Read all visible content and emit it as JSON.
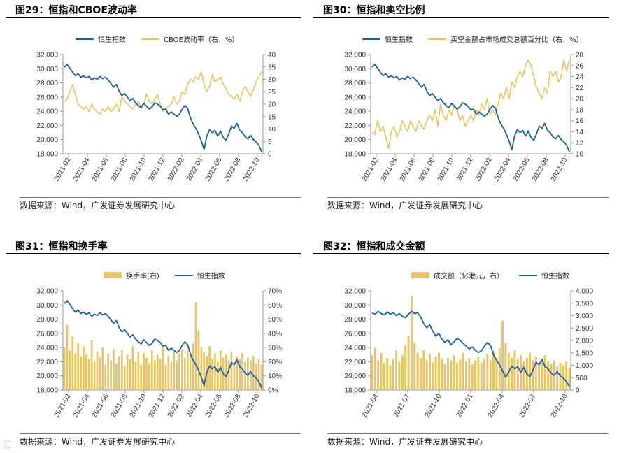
{
  "source_label": "数据来源：Wind，广发证券发展研究中心",
  "watermark": "汇",
  "colors": {
    "hsi": "#1f5f9e",
    "secondary": "#e6c566",
    "bar": "#e6c566"
  },
  "chart_data": [
    {
      "id": "fig29",
      "type": "line",
      "title": "图29：恒指和CBOE波动率",
      "y_left": {
        "min": 18000,
        "max": 32000,
        "ticks": [
          "32,000",
          "30,000",
          "28,000",
          "26,000",
          "24,000",
          "22,000",
          "20,000",
          "18,000"
        ]
      },
      "y_right": {
        "min": 0,
        "max": 40,
        "ticks": [
          "40",
          "35",
          "30",
          "25",
          "20",
          "15",
          "10",
          "5",
          "0"
        ]
      },
      "x_ticks": [
        "2021-02",
        "2021-04",
        "2021-06",
        "2021-08",
        "2021-10",
        "2021-12",
        "2022-02",
        "2022-04",
        "2022-06",
        "2022-08",
        "2022-10"
      ],
      "legend_order": [
        "hsi",
        "sec"
      ],
      "series": [
        {
          "key": "hsi",
          "name": "恒生指数",
          "axis": "left",
          "style": "line",
          "values": [
            30200,
            30600,
            30100,
            29500,
            29000,
            29300,
            28800,
            29000,
            28700,
            28900,
            28400,
            28700,
            28500,
            28900,
            28600,
            28800,
            28400,
            27900,
            27400,
            27800,
            26800,
            26200,
            26500,
            26000,
            25500,
            25800,
            25200,
            24800,
            24500,
            25100,
            24700,
            24300,
            24600,
            25200,
            25000,
            24700,
            24200,
            24300,
            23600,
            23900,
            23600,
            23300,
            23600,
            24300,
            24800,
            24400,
            23100,
            22200,
            21600,
            20800,
            19800,
            18600,
            20500,
            21400,
            21000,
            21300,
            20500,
            21200,
            20300,
            19900,
            20800,
            21900,
            21600,
            22300,
            21300,
            21000,
            20400,
            20100,
            20600,
            20000,
            19700,
            19200,
            18300
          ]
        },
        {
          "key": "sec",
          "name": "CBOE波动率（右，%）",
          "axis": "right",
          "style": "line",
          "values": [
            21,
            22,
            25,
            28,
            24,
            20,
            19,
            18,
            19,
            17,
            20,
            18,
            17,
            16,
            18,
            17,
            19,
            17,
            18,
            20,
            17,
            23,
            21,
            20,
            19,
            18,
            20,
            21,
            19,
            20,
            24,
            21,
            20,
            22,
            24,
            20,
            17,
            18,
            19,
            20,
            23,
            20,
            21,
            25,
            24,
            28,
            30,
            29,
            31,
            30,
            33,
            28,
            25,
            27,
            32,
            29,
            30,
            31,
            28,
            26,
            24,
            23,
            22,
            24,
            21,
            25,
            27,
            25,
            23,
            26,
            29,
            31,
            33
          ]
        }
      ]
    },
    {
      "id": "fig30",
      "type": "line",
      "title": "图30：恒指和卖空比例",
      "y_left": {
        "min": 18000,
        "max": 32000,
        "ticks": [
          "32,000",
          "30,000",
          "28,000",
          "26,000",
          "24,000",
          "22,000",
          "20,000",
          "18,000"
        ]
      },
      "y_right": {
        "min": 10,
        "max": 28,
        "ticks": [
          "28",
          "26",
          "24",
          "22",
          "20",
          "18",
          "16",
          "14",
          "12",
          "10"
        ]
      },
      "x_ticks": [
        "2021-02",
        "2021-04",
        "2021-06",
        "2021-08",
        "2021-10",
        "2021-12",
        "2022-02",
        "2022-04",
        "2022-06",
        "2022-08",
        "2022-10"
      ],
      "legend_order": [
        "hsi",
        "sec"
      ],
      "series": [
        {
          "key": "hsi",
          "name": "恒生指数",
          "axis": "left",
          "style": "line",
          "values": [
            30200,
            30600,
            30100,
            29500,
            29000,
            29300,
            28800,
            29000,
            28700,
            28900,
            28400,
            28700,
            28500,
            28900,
            28600,
            28800,
            28400,
            27900,
            27400,
            27800,
            26800,
            26200,
            26500,
            26000,
            25500,
            25800,
            25200,
            24800,
            24500,
            25100,
            24700,
            24300,
            24600,
            25200,
            25000,
            24700,
            24200,
            24300,
            23600,
            23900,
            23600,
            23300,
            23600,
            24300,
            24800,
            24400,
            23100,
            22200,
            21600,
            20800,
            19800,
            18600,
            20500,
            21400,
            21000,
            21300,
            20500,
            21200,
            20300,
            19900,
            20800,
            21900,
            21600,
            22300,
            21300,
            21000,
            20400,
            20100,
            20600,
            20000,
            19700,
            19200,
            18300
          ]
        },
        {
          "key": "sec",
          "name": "卖空金额占市场成交总额百分比（右，%）",
          "axis": "right",
          "style": "line",
          "values": [
            14,
            13.5,
            16,
            14,
            15,
            13,
            11,
            14,
            15,
            13,
            14,
            16,
            15,
            14,
            16,
            15,
            14,
            16,
            15,
            14.5,
            16,
            17,
            16,
            18,
            15,
            19,
            17,
            16,
            18,
            17,
            19,
            18,
            16,
            17,
            15,
            16,
            17,
            16,
            18,
            17,
            19,
            18,
            20,
            17,
            18,
            17,
            19,
            21,
            20,
            22,
            20,
            23,
            22,
            24,
            25,
            24,
            26,
            27,
            26,
            24,
            22,
            21,
            20,
            22,
            21,
            25,
            24,
            25,
            23,
            24,
            27,
            25,
            27
          ]
        }
      ]
    },
    {
      "id": "fig31",
      "type": "bar",
      "title": "图31：恒指和换手率",
      "y_left": {
        "min": 18000,
        "max": 32000,
        "ticks": [
          "32,000",
          "30,000",
          "28,000",
          "26,000",
          "24,000",
          "22,000",
          "20,000",
          "18,000"
        ]
      },
      "y_right": {
        "min": 0,
        "max": 70,
        "ticks": [
          "70%",
          "60%",
          "50%",
          "40%",
          "30%",
          "20%",
          "10%",
          "0%"
        ]
      },
      "x_ticks": [
        "2021-02",
        "2021-04",
        "2021-06",
        "2021-08",
        "2021-10",
        "2021-12",
        "2022-02",
        "2022-04",
        "2022-06",
        "2022-08",
        "2022-10"
      ],
      "legend_order": [
        "sec",
        "hsi"
      ],
      "series": [
        {
          "key": "hsi",
          "name": "恒生指数",
          "axis": "left",
          "style": "line",
          "values": [
            30200,
            30600,
            30100,
            29500,
            29000,
            29300,
            28800,
            29000,
            28700,
            28900,
            28400,
            28700,
            28500,
            28900,
            28600,
            28800,
            28400,
            27900,
            27400,
            27800,
            26800,
            26200,
            26500,
            26000,
            25500,
            25800,
            25200,
            24800,
            24500,
            25100,
            24700,
            24300,
            24600,
            25200,
            25000,
            24700,
            24200,
            24300,
            23600,
            23900,
            23600,
            23300,
            23600,
            24300,
            24800,
            24400,
            23100,
            22200,
            21600,
            20800,
            19800,
            18600,
            20500,
            21400,
            21000,
            21300,
            20500,
            21200,
            20300,
            19900,
            20800,
            21900,
            21600,
            22300,
            21300,
            21000,
            20400,
            20100,
            20600,
            20000,
            19700,
            19200,
            18300
          ]
        },
        {
          "key": "sec",
          "name": "换手率(右)",
          "axis": "right",
          "style": "bar",
          "values": [
            30,
            46,
            28,
            38,
            26,
            33,
            24,
            31,
            25,
            22,
            35,
            20,
            27,
            23,
            30,
            18,
            26,
            21,
            29,
            19,
            24,
            28,
            17,
            25,
            22,
            31,
            20,
            27,
            18,
            26,
            23,
            19,
            28,
            21,
            25,
            22,
            30,
            18,
            24,
            20,
            27,
            21,
            26,
            29,
            23,
            28,
            25,
            33,
            62,
            42,
            30,
            27,
            24,
            31,
            22,
            26,
            20,
            28,
            23,
            25,
            21,
            27,
            19,
            24,
            22,
            26,
            20,
            23,
            21,
            24,
            19,
            22,
            18
          ]
        }
      ]
    },
    {
      "id": "fig32",
      "type": "bar",
      "title": "图32：恒指和成交金额",
      "y_left": {
        "min": 18000,
        "max": 32000,
        "ticks": [
          "32,000",
          "30,000",
          "28,000",
          "26,000",
          "24,000",
          "22,000",
          "20,000",
          "18,000"
        ]
      },
      "y_right": {
        "min": 0,
        "max": 4000,
        "ticks": [
          "4,000",
          "3,500",
          "3,000",
          "2,500",
          "2,000",
          "1,500",
          "1,000",
          "500",
          "0"
        ]
      },
      "x_ticks": [
        "2021-04",
        "2021-07",
        "2021-10",
        "2022-01",
        "2022-04",
        "2022-07",
        "2022-10"
      ],
      "legend_order": [
        "sec",
        "hsi"
      ],
      "series": [
        {
          "key": "hsi",
          "name": "恒生指数",
          "axis": "left",
          "style": "line",
          "values": [
            28900,
            28700,
            29100,
            28800,
            28600,
            29000,
            28700,
            28900,
            28500,
            28800,
            28400,
            28200,
            28700,
            29100,
            28800,
            28900,
            28300,
            27400,
            26800,
            27200,
            26300,
            25600,
            26000,
            25200,
            24700,
            25100,
            24400,
            24800,
            25300,
            25000,
            24600,
            24200,
            23800,
            24100,
            23600,
            23300,
            23500,
            24200,
            24700,
            24300,
            23000,
            22200,
            21600,
            20700,
            19800,
            20500,
            21400,
            21000,
            21300,
            20500,
            21200,
            20300,
            19900,
            20800,
            21900,
            21600,
            22300,
            21300,
            21000,
            20400,
            20100,
            20600,
            20000,
            19700,
            19200,
            18500
          ]
        },
        {
          "key": "sec",
          "name": "成交额（亿港元，右）",
          "axis": "right",
          "style": "bar",
          "values": [
            1400,
            1700,
            1200,
            1500,
            1100,
            1300,
            1000,
            1250,
            1600,
            1150,
            1400,
            1800,
            2200,
            3800,
            1900,
            1500,
            1300,
            1600,
            1200,
            1450,
            1100,
            1350,
            1500,
            1250,
            1050,
            1300,
            1200,
            1400,
            1100,
            1250,
            1500,
            1150,
            1300,
            1050,
            1200,
            1350,
            1100,
            1250,
            1450,
            1200,
            1600,
            1300,
            1700,
            2800,
            1900,
            1500,
            1300,
            1600,
            1250,
            1400,
            1150,
            1300,
            1500,
            1200,
            1350,
            1100,
            1250,
            1400,
            1150,
            1050,
            1200,
            950,
            1100,
            1000,
            1150,
            900
          ]
        }
      ]
    }
  ]
}
